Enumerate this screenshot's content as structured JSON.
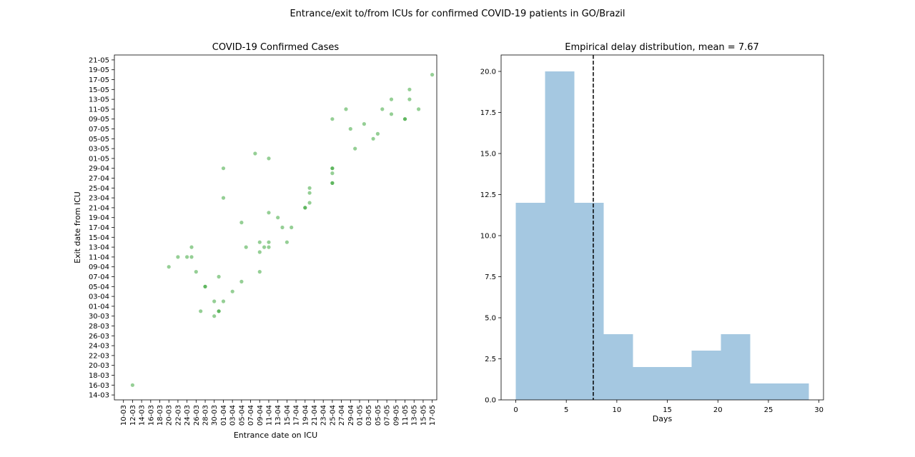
{
  "suptitle": "Entrance/exit to/from ICUs for confirmed COVID-19 patients in GO/Brazil",
  "chart_data": [
    {
      "type": "scatter",
      "title": "COVID-19 Confirmed Cases",
      "xlabel": "Entrance date on ICU",
      "ylabel": "Exit date from ICU",
      "point_color": "#2ca02c",
      "x_ticks": [
        "10-03",
        "12-03",
        "14-03",
        "16-03",
        "18-03",
        "20-03",
        "22-03",
        "24-03",
        "26-03",
        "28-03",
        "30-03",
        "01-04",
        "03-04",
        "05-04",
        "07-04",
        "09-04",
        "11-04",
        "13-04",
        "15-04",
        "17-04",
        "19-04",
        "21-04",
        "23-04",
        "25-04",
        "27-04",
        "29-04",
        "01-05",
        "03-05",
        "05-05",
        "07-05",
        "09-05",
        "11-05",
        "13-05",
        "15-05",
        "17-05"
      ],
      "y_ticks": [
        "14-03",
        "16-03",
        "18-03",
        "20-03",
        "22-03",
        "24-03",
        "26-03",
        "28-03",
        "30-03",
        "01-04",
        "03-04",
        "05-04",
        "07-04",
        "09-04",
        "11-04",
        "13-04",
        "15-04",
        "17-04",
        "19-04",
        "21-04",
        "23-04",
        "25-04",
        "27-04",
        "29-04",
        "01-05",
        "03-05",
        "05-05",
        "07-05",
        "09-05",
        "11-05",
        "13-05",
        "15-05",
        "17-05",
        "19-05",
        "21-05"
      ],
      "xlim": [
        "08-03",
        "18-05"
      ],
      "ylim": [
        "13-03",
        "22-05"
      ],
      "points": [
        {
          "x": "12-03",
          "y": "16-03"
        },
        {
          "x": "20-03",
          "y": "09-04"
        },
        {
          "x": "22-03",
          "y": "11-04"
        },
        {
          "x": "24-03",
          "y": "11-04"
        },
        {
          "x": "25-03",
          "y": "11-04"
        },
        {
          "x": "25-03",
          "y": "13-04"
        },
        {
          "x": "26-03",
          "y": "08-04"
        },
        {
          "x": "27-03",
          "y": "31-03"
        },
        {
          "x": "28-03",
          "y": "05-04"
        },
        {
          "x": "28-03",
          "y": "05-04"
        },
        {
          "x": "30-03",
          "y": "30-03"
        },
        {
          "x": "30-03",
          "y": "02-04"
        },
        {
          "x": "31-03",
          "y": "31-03"
        },
        {
          "x": "31-03",
          "y": "31-03"
        },
        {
          "x": "31-03",
          "y": "07-04"
        },
        {
          "x": "01-04",
          "y": "02-04"
        },
        {
          "x": "01-04",
          "y": "23-04"
        },
        {
          "x": "01-04",
          "y": "29-04"
        },
        {
          "x": "03-04",
          "y": "04-04"
        },
        {
          "x": "05-04",
          "y": "06-04"
        },
        {
          "x": "05-04",
          "y": "18-04"
        },
        {
          "x": "06-04",
          "y": "13-04"
        },
        {
          "x": "08-04",
          "y": "02-05"
        },
        {
          "x": "09-04",
          "y": "08-04"
        },
        {
          "x": "09-04",
          "y": "12-04"
        },
        {
          "x": "09-04",
          "y": "14-04"
        },
        {
          "x": "10-04",
          "y": "13-04"
        },
        {
          "x": "11-04",
          "y": "13-04"
        },
        {
          "x": "11-04",
          "y": "14-04"
        },
        {
          "x": "11-04",
          "y": "20-04"
        },
        {
          "x": "11-04",
          "y": "01-05"
        },
        {
          "x": "13-04",
          "y": "19-04"
        },
        {
          "x": "14-04",
          "y": "17-04"
        },
        {
          "x": "15-04",
          "y": "14-04"
        },
        {
          "x": "16-04",
          "y": "17-04"
        },
        {
          "x": "19-04",
          "y": "21-04"
        },
        {
          "x": "19-04",
          "y": "21-04"
        },
        {
          "x": "20-04",
          "y": "22-04"
        },
        {
          "x": "20-04",
          "y": "24-04"
        },
        {
          "x": "20-04",
          "y": "25-04"
        },
        {
          "x": "25-04",
          "y": "26-04"
        },
        {
          "x": "25-04",
          "y": "26-04"
        },
        {
          "x": "25-04",
          "y": "28-04"
        },
        {
          "x": "25-04",
          "y": "29-04"
        },
        {
          "x": "25-04",
          "y": "29-04"
        },
        {
          "x": "25-04",
          "y": "09-05"
        },
        {
          "x": "28-04",
          "y": "11-05"
        },
        {
          "x": "29-04",
          "y": "07-05"
        },
        {
          "x": "30-04",
          "y": "03-05"
        },
        {
          "x": "02-05",
          "y": "08-05"
        },
        {
          "x": "04-05",
          "y": "05-05"
        },
        {
          "x": "05-05",
          "y": "06-05"
        },
        {
          "x": "06-05",
          "y": "11-05"
        },
        {
          "x": "08-05",
          "y": "10-05"
        },
        {
          "x": "08-05",
          "y": "13-05"
        },
        {
          "x": "11-05",
          "y": "09-05"
        },
        {
          "x": "11-05",
          "y": "09-05"
        },
        {
          "x": "12-05",
          "y": "13-05"
        },
        {
          "x": "12-05",
          "y": "15-05"
        },
        {
          "x": "14-05",
          "y": "11-05"
        },
        {
          "x": "17-05",
          "y": "18-05"
        }
      ]
    },
    {
      "type": "bar",
      "title": "Empirical delay distribution, mean = 7.67",
      "xlabel": "Days",
      "ylabel": "",
      "bar_color": "#a5c8e1",
      "mean": 7.67,
      "mean_line_color": "#000000",
      "bin_edges": [
        0,
        2.9,
        5.8,
        8.7,
        11.6,
        14.5,
        17.4,
        20.3,
        23.2,
        26.1,
        29
      ],
      "counts": [
        12,
        20,
        12,
        4,
        2,
        2,
        3,
        4,
        1,
        1
      ],
      "xlim": [
        -1.45,
        30.45
      ],
      "ylim": [
        0,
        21
      ],
      "x_ticks": [
        "0",
        "5",
        "10",
        "15",
        "20",
        "25",
        "30"
      ],
      "y_ticks": [
        "0.0",
        "2.5",
        "5.0",
        "7.5",
        "10.0",
        "12.5",
        "15.0",
        "17.5",
        "20.0"
      ]
    }
  ]
}
